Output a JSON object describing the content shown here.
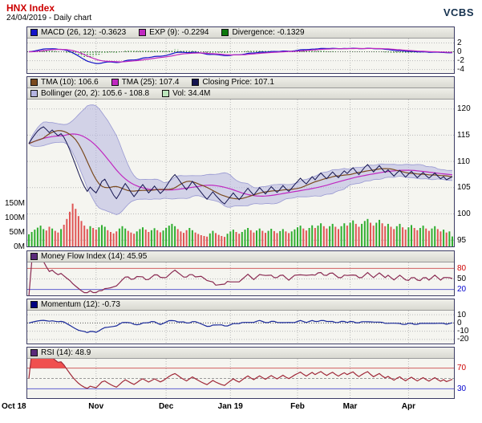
{
  "header": {
    "title": "HNX Index",
    "subtitle": "24/04/2019 - Daily chart",
    "brand": "VCBS"
  },
  "panels": {
    "macd": {
      "legend": [
        {
          "name": "macd-series",
          "swatch": "#1414c8",
          "label": "MACD (26, 12): -0.3623"
        },
        {
          "name": "exp-series",
          "swatch": "#c028c0",
          "label": "EXP (9): -0.2294"
        },
        {
          "name": "divergence-series",
          "swatch": "#0c780c",
          "label": "Divergence: -0.1329"
        }
      ],
      "range": [
        3,
        -4.8
      ],
      "ticks": [
        {
          "v": 2
        },
        {
          "v": 0
        },
        {
          "v": -2
        },
        {
          "v": -4
        }
      ]
    },
    "price": {
      "legend_rows": [
        [
          {
            "name": "tma10-series",
            "swatch": "#7a4a1e",
            "label": "TMA (10): 106.6"
          },
          {
            "name": "tma25-series",
            "swatch": "#c028c0",
            "label": "TMA (25): 107.4"
          },
          {
            "name": "closing-price-series",
            "swatch": "#141450",
            "label": "Closing Price: 107.1"
          }
        ],
        [
          {
            "name": "bollinger-series",
            "swatch": "#b4b4e0",
            "label": "Bollinger (20, 2): 105.6 - 108.8"
          },
          {
            "name": "volume-series",
            "swatch": "#bce6bc",
            "label": "Vol: 34.4M"
          }
        ]
      ],
      "range": [
        121.8,
        93.8
      ],
      "ticks": [
        {
          "v": 120
        },
        {
          "v": 115
        },
        {
          "v": 110
        },
        {
          "v": 105
        },
        {
          "v": 100
        },
        {
          "v": 95
        }
      ],
      "volume_axis": {
        "max_m": 150,
        "labels": [
          {
            "v": 150,
            "label": "150M"
          },
          {
            "v": 100,
            "label": "100M"
          },
          {
            "v": 50,
            "label": "50M"
          },
          {
            "v": 0,
            "label": "0M"
          }
        ]
      }
    },
    "mfi": {
      "legend": [
        {
          "name": "mfi-series",
          "swatch": "#5a2a7a",
          "label": "Money Flow Index (14): 45.95"
        }
      ],
      "range": [
        97,
        3
      ],
      "ticks": [
        {
          "v": 80,
          "c": "red"
        },
        {
          "v": 50
        },
        {
          "v": 20,
          "c": "blue"
        }
      ]
    },
    "momentum": {
      "legend": [
        {
          "name": "momentum-series",
          "swatch": "#000080",
          "label": "Momentum (12): -0.73"
        }
      ],
      "range": [
        15,
        -25
      ],
      "ticks": [
        {
          "v": 10
        },
        {
          "v": 0
        },
        {
          "v": -10
        },
        {
          "v": -20
        }
      ]
    },
    "rsi": {
      "legend": [
        {
          "name": "rsi-series",
          "swatch": "#5a2a7a",
          "label": "RSI (14): 48.9"
        }
      ],
      "range": [
        88,
        12
      ],
      "ticks": [
        {
          "v": 70,
          "c": "red"
        },
        {
          "v": 30,
          "c": "blue"
        }
      ]
    }
  },
  "x_axis": {
    "ticks": [
      {
        "label": "Oct 18",
        "i": 0
      },
      {
        "label": "Nov",
        "i": 23
      },
      {
        "label": "Dec",
        "i": 47
      },
      {
        "label": "Jan 19",
        "i": 69
      },
      {
        "label": "Feb",
        "i": 92
      },
      {
        "label": "Mar",
        "i": 110
      },
      {
        "label": "Apr",
        "i": 130
      }
    ]
  },
  "chart_data": {
    "type": "line",
    "title": "HNX Index - Daily chart (24/04/2019)",
    "x_tick_labels": [
      "Oct 18",
      "Nov",
      "Dec",
      "Jan 19",
      "Feb",
      "Mar",
      "Apr"
    ],
    "x_tick_indices": [
      0,
      23,
      47,
      69,
      92,
      110,
      130
    ],
    "price_axis": {
      "range": [
        121.8,
        93.8
      ],
      "ticks": [
        120,
        115,
        110,
        105,
        100,
        95
      ]
    },
    "volume_axis_max_m": 150,
    "close": [
      113.4,
      114.3,
      115.1,
      115.8,
      116.3,
      116.6,
      116.1,
      115.5,
      116.0,
      115.4,
      114.9,
      115.3,
      114.6,
      113.5,
      112.2,
      110.8,
      109.3,
      107.8,
      106.4,
      105.2,
      104.3,
      105.1,
      104.5,
      104.0,
      105.0,
      106.2,
      106.6,
      105.6,
      104.6,
      103.6,
      102.9,
      103.8,
      104.9,
      105.8,
      105.0,
      104.1,
      103.3,
      104.0,
      104.9,
      105.6,
      104.8,
      104.0,
      104.6,
      105.3,
      104.6,
      103.9,
      104.4,
      105.2,
      106.1,
      106.9,
      107.5,
      106.8,
      106.0,
      105.3,
      104.6,
      105.4,
      106.2,
      105.5,
      104.8,
      104.1,
      103.4,
      102.8,
      103.5,
      104.2,
      103.5,
      102.9,
      102.3,
      101.9,
      102.6,
      103.3,
      104.0,
      103.3,
      102.7,
      103.4,
      104.2,
      104.9,
      104.2,
      103.6,
      104.3,
      105.0,
      104.4,
      103.8,
      104.5,
      105.2,
      104.6,
      104.1,
      104.7,
      105.4,
      104.8,
      104.3,
      104.9,
      105.6,
      106.2,
      106.8,
      106.2,
      105.7,
      106.4,
      107.1,
      106.5,
      107.2,
      107.8,
      107.2,
      106.7,
      107.4,
      108.0,
      107.4,
      106.9,
      107.6,
      108.2,
      107.7,
      108.3,
      108.8,
      108.1,
      107.5,
      108.2,
      108.9,
      109.4,
      108.7,
      108.0,
      108.6,
      109.2,
      108.5,
      107.9,
      108.4,
      107.8,
      107.2,
      107.8,
      108.3,
      107.6,
      107.0,
      107.6,
      108.1,
      107.5,
      106.9,
      107.4,
      107.9,
      107.3,
      106.8,
      107.3,
      107.8,
      107.2,
      106.7,
      107.1,
      106.5,
      106.8,
      107.1
    ],
    "volume_m": [
      42,
      50,
      58,
      65,
      72,
      60,
      55,
      68,
      62,
      54,
      48,
      60,
      75,
      95,
      120,
      148,
      130,
      105,
      88,
      72,
      60,
      70,
      64,
      58,
      66,
      74,
      68,
      56,
      50,
      45,
      52,
      62,
      70,
      62,
      54,
      48,
      44,
      52,
      60,
      66,
      58,
      50,
      56,
      63,
      56,
      49,
      55,
      64,
      72,
      78,
      70,
      60,
      52,
      47,
      56,
      64,
      56,
      48,
      43,
      39,
      36,
      34,
      45,
      54,
      46,
      40,
      36,
      33,
      44,
      52,
      58,
      50,
      44,
      50,
      58,
      64,
      56,
      48,
      55,
      62,
      54,
      47,
      54,
      61,
      53,
      46,
      53,
      60,
      52,
      46,
      52,
      59,
      66,
      72,
      62,
      55,
      64,
      73,
      64,
      72,
      80,
      70,
      62,
      70,
      78,
      68,
      60,
      70,
      80,
      72,
      82,
      90,
      78,
      68,
      78,
      88,
      95,
      82,
      72,
      82,
      92,
      80,
      70,
      78,
      68,
      60,
      70,
      78,
      66,
      58,
      66,
      74,
      64,
      56,
      64,
      72,
      62,
      54,
      62,
      70,
      60,
      52,
      58,
      48,
      52,
      34.4
    ],
    "indicators": {
      "macd_26_12": -0.3623,
      "exp_9": -0.2294,
      "divergence": -0.1329,
      "tma_10": 106.6,
      "tma_25": 107.4,
      "closing_price": 107.1,
      "bollinger_20_2": "105.6 - 108.8",
      "volume": "34.4M",
      "money_flow_index_14": 45.95,
      "momentum_12": -0.73,
      "rsi_14": 48.9
    }
  },
  "colors": {
    "title_red": "#cc0000",
    "brand": "#16324f",
    "grid": "#b9b9b9",
    "panel_bg": "#f5f5f0",
    "border": "#3c3c64",
    "macd_line": "#1414c8",
    "exp_line": "#c028c0",
    "divergence": "#0c780c",
    "tma10": "#7a4a1e",
    "tma25": "#c028c0",
    "close": "#141450",
    "bollinger_fill": "#b4b4e0",
    "bollinger_edge": "#9898d2",
    "vol_up": "#2fae2f",
    "vol_down": "#e05555",
    "mfi_line": "#8a2a52",
    "momentum_line": "#1a2a9a",
    "rsi_line": "#a02838",
    "rsi_over_fill": "#ee3333",
    "rsi_under_fill": "#3a3ad0",
    "threshold_red": "#d06060",
    "threshold_blue": "#6060d0",
    "tick_red": "#cc0000",
    "tick_blue": "#0000cc"
  }
}
